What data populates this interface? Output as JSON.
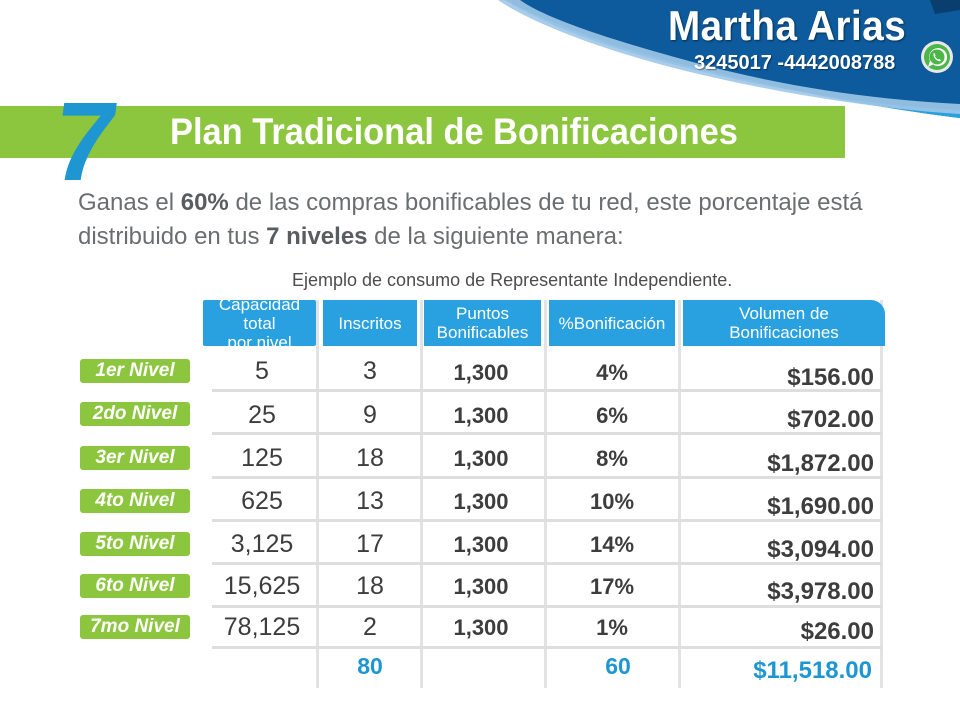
{
  "header": {
    "name": "Martha Arias",
    "phone": "3245017 -4442008788",
    "icon": "whatsapp-icon"
  },
  "title": {
    "number": "7",
    "text": "Plan Tradicional de Bonificaciones"
  },
  "description": {
    "part1": "Ganas el ",
    "pct": "60%",
    "part2": " de las compras bonificables de tu red, este porcentaje está",
    "part3": "distribuido en tus ",
    "levels": "7 niveles",
    "part4": " de la siguiente manera:"
  },
  "table": {
    "caption": "Ejemplo de consumo de Representante Independiente.",
    "headers": [
      "Capacidad total por nivel",
      "Inscritos",
      "Puntos Bonificables",
      "%Bonificación",
      "Volumen de Bonificaciones"
    ],
    "rows": [
      {
        "level": "1er Nivel",
        "capacity": "5",
        "enrolled": "3",
        "points": "1,300",
        "percent": "4%",
        "volume": "$156.00"
      },
      {
        "level": "2do Nivel",
        "capacity": "25",
        "enrolled": "9",
        "points": "1,300",
        "percent": "6%",
        "volume": "$702.00"
      },
      {
        "level": "3er Nivel",
        "capacity": "125",
        "enrolled": "18",
        "points": "1,300",
        "percent": "8%",
        "volume": "$1,872.00"
      },
      {
        "level": "4to Nivel",
        "capacity": "625",
        "enrolled": "13",
        "points": "1,300",
        "percent": "10%",
        "volume": "$1,690.00"
      },
      {
        "level": "5to Nivel",
        "capacity": "3,125",
        "enrolled": "17",
        "points": "1,300",
        "percent": "14%",
        "volume": "$3,094.00"
      },
      {
        "level": "6to Nivel",
        "capacity": "15,625",
        "enrolled": "18",
        "points": "1,300",
        "percent": "17%",
        "volume": "$3,978.00"
      },
      {
        "level": "7mo Nivel",
        "capacity": "78,125",
        "enrolled": "2",
        "points": "1,300",
        "percent": "1%",
        "volume": "$26.00"
      }
    ],
    "totals": {
      "enrolled": "80",
      "percent": "60",
      "volume": "$11,518.00"
    }
  },
  "colors": {
    "green": "#8cc63f",
    "blue": "#29a1e0",
    "dark_blue": "#0d5a9c",
    "total_blue": "#1e96d2"
  }
}
